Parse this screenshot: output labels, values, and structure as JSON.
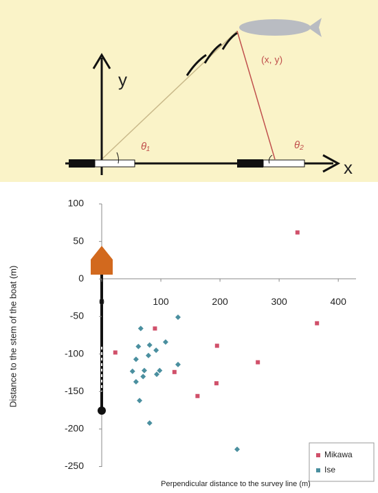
{
  "diagram": {
    "y_axis": "y",
    "x_axis": "x",
    "target": "(x, y)",
    "angle_1": "θ₁",
    "angle_2": "θ₂"
  },
  "chart_data": {
    "type": "scatter",
    "x_label": "Perpendicular distance to the survey line (m)",
    "y_label": "Distance to the stem of the boat (m)",
    "xlim": [
      0,
      430
    ],
    "xticks": [
      0,
      100,
      200,
      300,
      400
    ],
    "ylim": [
      -250,
      100
    ],
    "yticks": [
      100,
      50,
      0,
      -50,
      -100,
      -150,
      -200,
      -250
    ],
    "legend": "lower right",
    "series": [
      {
        "name": "Mikawa",
        "color": "#d0506a",
        "x": [
          331,
          364,
          264,
          195,
          194,
          162,
          123,
          90,
          23
        ],
        "values": [
          62,
          -59,
          -111,
          -89,
          -139,
          -156,
          -124,
          -66,
          -98
        ]
      },
      {
        "name": "Ise",
        "color": "#4a8f9f",
        "x": [
          129,
          66,
          108,
          81,
          62,
          92,
          79,
          58,
          72,
          98,
          93,
          52,
          70,
          129,
          58,
          64,
          81,
          229
        ],
        "values": [
          -51,
          -66,
          -84,
          -88,
          -90,
          -95,
          -102,
          -107,
          -122,
          -122,
          -127,
          -123,
          -130,
          -114,
          -137,
          -162,
          -192,
          -227
        ]
      }
    ]
  }
}
